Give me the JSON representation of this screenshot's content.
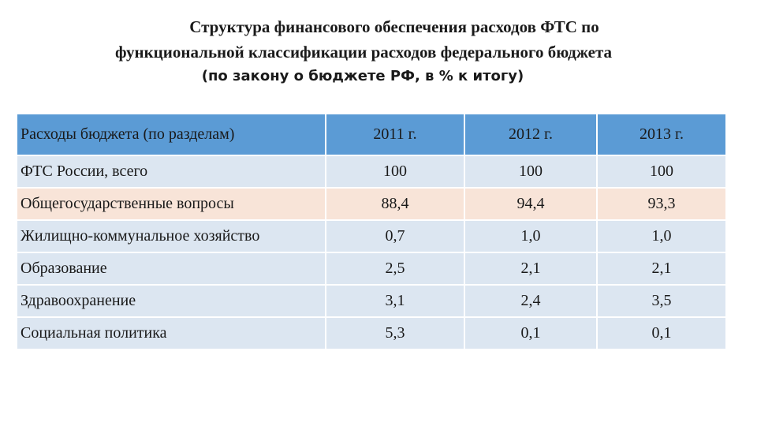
{
  "title": {
    "line1": "Структура финансового обеспечения расходов ФТС по",
    "line2": "функциональной классификации расходов федерального бюджета",
    "subtitle": "(по закону о бюджете РФ, в % к итогу)"
  },
  "table": {
    "headers": [
      "Расходы бюджета (по разделам)",
      "2011 г.",
      "2012 г.",
      "2013 г."
    ],
    "rows": [
      {
        "label": "ФТС России, всего",
        "values": [
          "100",
          "100",
          "100"
        ]
      },
      {
        "label": "Общегосударственные вопросы",
        "values": [
          "88,4",
          "94,4",
          "93,3"
        ]
      },
      {
        "label": "Жилищно-коммунальное хозяйство",
        "values": [
          "0,7",
          "1,0",
          "1,0"
        ]
      },
      {
        "label": "Образование",
        "values": [
          "2,5",
          "2,1",
          "2,1"
        ]
      },
      {
        "label": "Здравоохранение",
        "values": [
          "3,1",
          "2,4",
          "3,5"
        ]
      },
      {
        "label": "Социальная политика",
        "values": [
          "5,3",
          "0,1",
          "0,1"
        ]
      }
    ]
  },
  "colors": {
    "header_fill": "#5b9bd5",
    "row_fill": "#dce6f1",
    "highlight_row_fill": "#f8e4d8"
  }
}
